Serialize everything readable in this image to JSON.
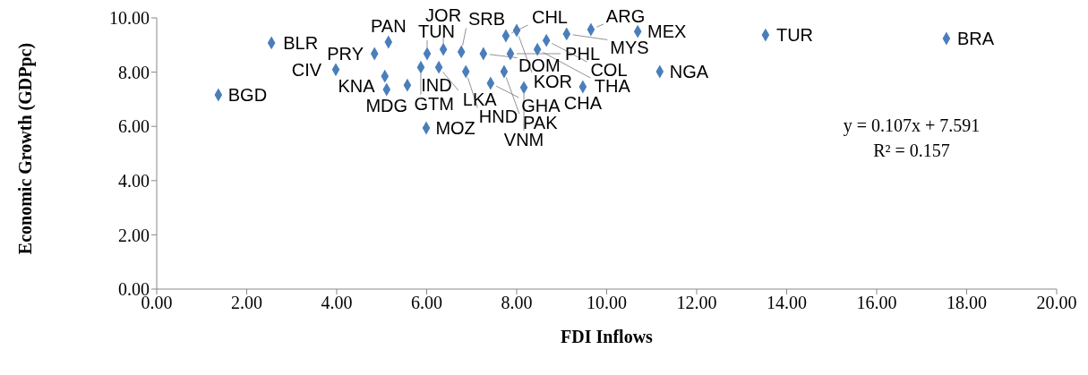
{
  "chart_data": {
    "type": "scatter",
    "xlabel": "FDI Inflows",
    "ylabel": "Economic Growth (GDPpc)",
    "x": [
      1.37,
      2.55,
      3.98,
      5.15,
      4.84,
      5.07,
      5.11,
      5.57,
      5.87,
      6.01,
      5.99,
      6.37,
      6.27,
      6.77,
      6.87,
      7.26,
      7.42,
      7.76,
      8.0,
      7.86,
      7.72,
      8.16,
      9.11,
      8.46,
      8.66,
      9.65,
      9.47,
      10.69,
      11.18,
      13.53,
      17.55
    ],
    "series": [
      {
        "color": "#4a7ebb",
        "values": [
          7.16,
          9.08,
          8.09,
          9.11,
          8.68,
          7.85,
          7.36,
          7.52,
          8.18,
          8.68,
          5.94,
          8.84,
          8.18,
          8.75,
          8.02,
          8.68,
          7.59,
          9.34,
          9.54,
          8.68,
          8.02,
          7.43,
          9.41,
          8.84,
          9.17,
          9.57,
          7.46,
          9.5,
          8.02,
          9.37,
          9.24
        ]
      }
    ],
    "annotations": [
      {
        "text": "BGD",
        "x": 1.37,
        "y": 7.16
      },
      {
        "text": "BLR",
        "x": 2.55,
        "y": 9.08
      },
      {
        "text": "CIV",
        "x": 3.98,
        "y": 8.09
      },
      {
        "text": "PAN",
        "x": 5.15,
        "y": 9.11
      },
      {
        "text": "PRY",
        "x": 4.84,
        "y": 8.68
      },
      {
        "text": "KNA",
        "x": 5.07,
        "y": 7.85
      },
      {
        "text": "MDG",
        "x": 5.11,
        "y": 7.36
      },
      {
        "text": "IND",
        "x": 5.57,
        "y": 7.52
      },
      {
        "text": "GTM",
        "x": 5.87,
        "y": 8.18
      },
      {
        "text": "TUN",
        "x": 6.01,
        "y": 8.68
      },
      {
        "text": "MOZ",
        "x": 5.99,
        "y": 5.94
      },
      {
        "text": "JOR",
        "x": 6.37,
        "y": 8.84
      },
      {
        "text": "LKA",
        "x": 6.27,
        "y": 8.18
      },
      {
        "text": "SRB",
        "x": 6.77,
        "y": 8.75
      },
      {
        "text": "HND",
        "x": 6.87,
        "y": 8.02
      },
      {
        "text": "DOM",
        "x": 7.26,
        "y": 8.68
      },
      {
        "text": "GHA",
        "x": 7.42,
        "y": 7.59
      },
      {
        "text": "CHL",
        "x": 7.76,
        "y": 9.34
      },
      {
        "text": "KOR",
        "x": 8.0,
        "y": 9.54
      },
      {
        "text": "PHL",
        "x": 7.86,
        "y": 8.68
      },
      {
        "text": "PAK",
        "x": 7.72,
        "y": 8.02
      },
      {
        "text": "VNM",
        "x": 8.16,
        "y": 7.43
      },
      {
        "text": "MYS",
        "x": 9.11,
        "y": 9.41
      },
      {
        "text": "THA",
        "x": 8.46,
        "y": 8.84
      },
      {
        "text": "COL",
        "x": 8.66,
        "y": 9.17
      },
      {
        "text": "ARG",
        "x": 9.65,
        "y": 9.57
      },
      {
        "text": "CHA",
        "x": 9.47,
        "y": 7.46
      },
      {
        "text": "MEX",
        "x": 10.69,
        "y": 9.5
      },
      {
        "text": "NGA",
        "x": 11.18,
        "y": 8.02
      },
      {
        "text": "TUR",
        "x": 13.53,
        "y": 9.37
      },
      {
        "text": "BRA",
        "x": 17.55,
        "y": 9.24
      },
      "y = 0.107x + 7.591",
      "R² = 0.157"
    ],
    "xlim": [
      0,
      20
    ],
    "xticks": [
      {
        "value": 0,
        "label": "0.00"
      },
      {
        "value": 2,
        "label": "2.00"
      },
      {
        "value": 4,
        "label": "4.00"
      },
      {
        "value": 6,
        "label": "6.00"
      },
      {
        "value": 8,
        "label": "8.00"
      },
      {
        "value": 10,
        "label": "10.00"
      },
      {
        "value": 12,
        "label": "12.00"
      },
      {
        "value": 14,
        "label": "14.00"
      },
      {
        "value": 16,
        "label": "16.00"
      },
      {
        "value": 18,
        "label": "18.00"
      },
      {
        "value": 20,
        "label": "20.00"
      }
    ],
    "ylim": [
      0,
      10
    ],
    "yticks": [
      {
        "value": 0,
        "label": "0.00"
      },
      {
        "value": 2,
        "label": "2.00"
      },
      {
        "value": 4,
        "label": "4.00"
      },
      {
        "value": 6,
        "label": "6.00"
      },
      {
        "value": 8,
        "label": "8.00"
      },
      {
        "value": 10,
        "label": "10.00"
      }
    ],
    "grid": false,
    "legend": false,
    "marker": "diamond"
  }
}
